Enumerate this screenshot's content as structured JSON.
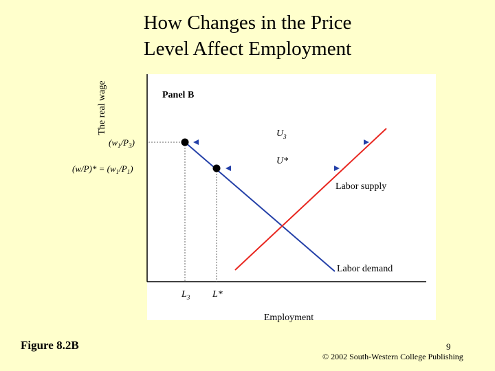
{
  "title": {
    "line1": "How Changes in the Price",
    "line2": "Level Affect Employment"
  },
  "diagram": {
    "panel_label": "Panel B",
    "y_axis_label": "The real wage",
    "x_axis_label": "Employment",
    "tick_w3": "(w1/P3)",
    "tick_wstar": "(w/P)* = (w1/P1)",
    "tick_L3": "L3",
    "tick_Lstar": "L*",
    "label_U3": "U3",
    "label_Ustar": "U*",
    "curve_supply": "Labor supply",
    "curve_demand": "Labor demand",
    "colors": {
      "supply": "#e8261f",
      "demand": "#2440a8",
      "axis": "#000000",
      "dashed": "#666666",
      "arrow": "#2440a8"
    }
  },
  "footer": {
    "figure_caption": "Figure 8.2B",
    "page_number": "9",
    "copyright": "© 2002 South-Western College Publishing"
  }
}
